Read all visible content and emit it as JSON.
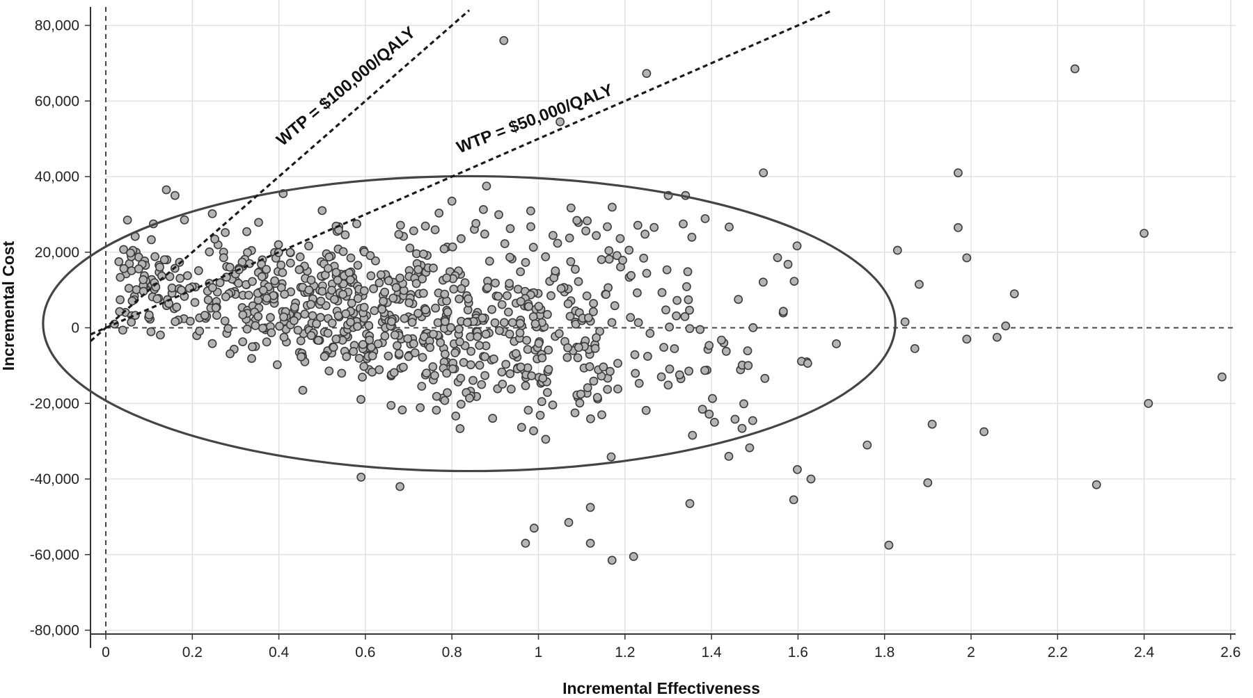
{
  "chart_data": {
    "type": "scatter",
    "title": "",
    "xlabel": "Incremental Effectiveness",
    "ylabel": "Incremental Cost",
    "xlim": [
      0,
      2.6
    ],
    "ylim": [
      -80000,
      80000
    ],
    "x_ticks": [
      0,
      0.2,
      0.4,
      0.6,
      0.8,
      1,
      1.2,
      1.4,
      1.6,
      1.8,
      2,
      2.2,
      2.4,
      2.6
    ],
    "x_tick_labels": [
      "0",
      "0.2",
      "0.4",
      "0.6",
      "0.8",
      "1",
      "1.2",
      "1.4",
      "1.6",
      "1.8",
      "2",
      "2.2",
      "2.4",
      "2.6"
    ],
    "y_ticks": [
      80000,
      60000,
      40000,
      20000,
      0,
      -20000,
      -40000,
      -60000,
      -80000
    ],
    "y_tick_labels": [
      "80,000",
      "60,000",
      "40,000",
      "20,000",
      "0",
      "-20,000",
      "-40,000",
      "-60,000",
      "-80,000"
    ],
    "grid": true,
    "legend": "none",
    "reference_lines": [
      {
        "label": "WTP = $100,000/QALY",
        "slope": 100000
      },
      {
        "label": "WTP = $50,000/QALY",
        "slope": 50000
      }
    ],
    "confidence_ellipse": {
      "center": [
        0.84,
        1100
      ],
      "semi_x": 0.985,
      "semi_y": 39000
    },
    "colors": {
      "point_fill": "#b4b4b4",
      "point_stroke": "#3a3a3a",
      "ellipse": "#444444",
      "grid": "#dddddd"
    },
    "outliers": [
      [
        0.92,
        76000
      ],
      [
        1.25,
        67300
      ],
      [
        2.24,
        68500
      ],
      [
        1.05,
        54500
      ],
      [
        1.52,
        41000
      ],
      [
        1.97,
        41000
      ],
      [
        1.97,
        26500
      ],
      [
        2.4,
        25000
      ],
      [
        2.1,
        9000
      ],
      [
        2.08,
        500
      ],
      [
        2.06,
        -2500
      ],
      [
        1.99,
        -3000
      ],
      [
        2.58,
        -13000
      ],
      [
        2.41,
        -20000
      ],
      [
        2.03,
        -27500
      ],
      [
        1.91,
        -25500
      ],
      [
        1.9,
        -41000
      ],
      [
        2.29,
        -41500
      ],
      [
        1.81,
        -57500
      ],
      [
        1.83,
        20500
      ],
      [
        1.88,
        11500
      ],
      [
        1.87,
        -5500
      ],
      [
        1.99,
        18500
      ],
      [
        1.17,
        -61500
      ],
      [
        1.22,
        -60500
      ],
      [
        0.99,
        -53000
      ],
      [
        0.97,
        -57000
      ],
      [
        1.12,
        -57000
      ],
      [
        1.07,
        -51500
      ],
      [
        1.12,
        -47500
      ],
      [
        1.35,
        -46500
      ],
      [
        0.02,
        1000
      ],
      [
        0.05,
        28500
      ],
      [
        0.07,
        20000
      ],
      [
        0.14,
        36500
      ],
      [
        0.16,
        35000
      ],
      [
        0.11,
        27500
      ],
      [
        0.41,
        35500
      ],
      [
        0.5,
        31000
      ],
      [
        0.58,
        27500
      ],
      [
        0.8,
        33500
      ],
      [
        0.88,
        37500
      ],
      [
        1.3,
        35000
      ],
      [
        1.34,
        35000
      ],
      [
        0.59,
        -39500
      ],
      [
        0.68,
        -42000
      ],
      [
        1.59,
        -45500
      ],
      [
        1.63,
        -40000
      ],
      [
        1.44,
        -34000
      ],
      [
        1.76,
        -31000
      ]
    ],
    "cloud_seed": 7,
    "cloud_count": 880
  }
}
